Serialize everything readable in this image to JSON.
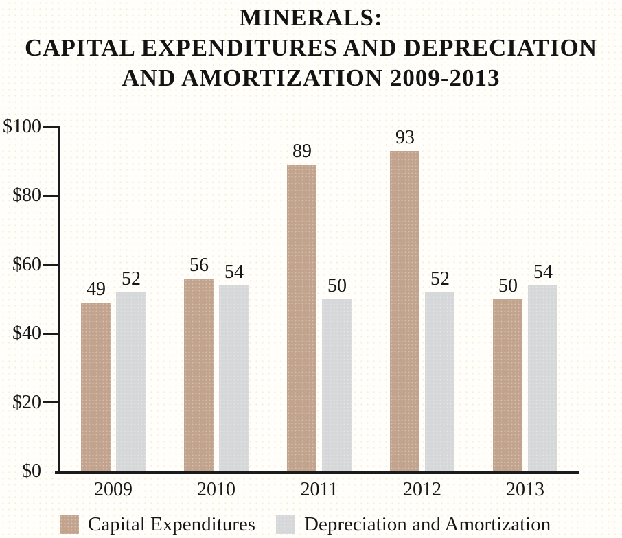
{
  "title": {
    "line1": "MINERALS:",
    "line2": "CAPITAL EXPENDITURES AND DEPRECIATION",
    "line3": "AND AMORTIZATION 2009-2013"
  },
  "chart_data": {
    "type": "bar",
    "categories": [
      "2009",
      "2010",
      "2011",
      "2012",
      "2013"
    ],
    "series": [
      {
        "name": "Capital Expenditures",
        "color": "#c2a38d",
        "values": [
          49,
          56,
          89,
          93,
          50
        ]
      },
      {
        "name": "Depreciation and Amortization",
        "color": "#d6d7d9",
        "values": [
          52,
          54,
          50,
          52,
          54
        ]
      }
    ],
    "y_axis": {
      "ticks": [
        {
          "label": "$100",
          "value": 100
        },
        {
          "label": "$80",
          "value": 80
        },
        {
          "label": "$60",
          "value": 60
        },
        {
          "label": "$40",
          "value": 40
        },
        {
          "label": "$20",
          "value": 20
        },
        {
          "label": "$0",
          "value": 0
        }
      ],
      "ylim": [
        0,
        100
      ]
    },
    "value_labels": true,
    "grid": false,
    "legend_position": "bottom"
  },
  "colors": {
    "axis": "#1b1b1b",
    "text": "#161616",
    "background": "#fffefa",
    "capital_expenditures": "#c2a38d",
    "depreciation_amortization": "#d6d7d9"
  }
}
